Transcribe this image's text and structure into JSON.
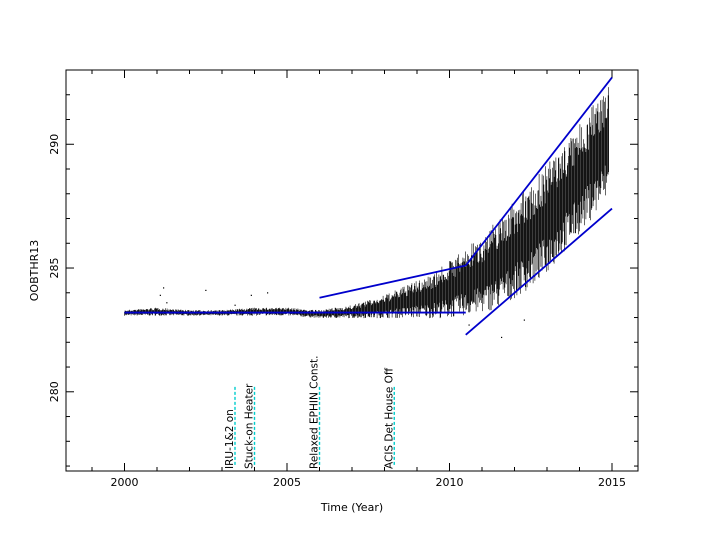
{
  "chart_data": {
    "type": "scatter",
    "title": "",
    "xlabel": "Time (Year)",
    "ylabel": "OOBTHR13",
    "xlim": [
      1998.2,
      2015.8
    ],
    "ylim": [
      276.8,
      293.0
    ],
    "x_ticks": [
      "2000",
      "2005",
      "2010",
      "2015"
    ],
    "y_ticks": [
      "280",
      "285",
      "290"
    ],
    "grid": false,
    "colors": {
      "data": "#000000",
      "fit": "#0000cc",
      "event": "#00cccc",
      "axes": "#000000"
    },
    "series": [
      {
        "kind": "data-envelope",
        "x": [
          2000.0,
          2001.0,
          2002.0,
          2003.0,
          2004.0,
          2005.0,
          2006.0,
          2006.5,
          2007.0,
          2007.5,
          2008.0,
          2008.5,
          2009.0,
          2009.5,
          2010.0,
          2010.5,
          2011.0,
          2011.5,
          2012.0,
          2012.5,
          2013.0,
          2013.5,
          2014.0,
          2014.5,
          2014.9
        ],
        "low": [
          283.1,
          283.1,
          283.1,
          283.1,
          283.1,
          283.1,
          283.0,
          283.0,
          283.0,
          283.0,
          283.0,
          283.0,
          283.0,
          283.0,
          283.0,
          283.1,
          283.2,
          283.4,
          283.8,
          284.2,
          284.8,
          285.6,
          286.4,
          287.2,
          287.8
        ],
        "high": [
          283.3,
          283.4,
          283.3,
          283.3,
          283.4,
          283.4,
          283.3,
          283.4,
          283.5,
          283.7,
          283.9,
          284.2,
          284.5,
          284.8,
          285.3,
          285.8,
          286.3,
          287.0,
          287.7,
          288.4,
          289.2,
          290.0,
          290.8,
          291.8,
          292.6
        ]
      }
    ],
    "fit_lines": [
      {
        "x": [
          2000.0,
          2010.5
        ],
        "y": [
          283.2,
          283.2
        ]
      },
      {
        "x": [
          2006.0,
          2010.5
        ],
        "y": [
          283.8,
          285.1
        ]
      },
      {
        "x": [
          2010.5,
          2015.0
        ],
        "y": [
          285.1,
          292.7
        ]
      },
      {
        "x": [
          2010.5,
          2015.0
        ],
        "y": [
          282.3,
          287.4
        ]
      }
    ],
    "sparse_points": [
      {
        "x": 2001.2,
        "y": 284.2
      },
      {
        "x": 2001.1,
        "y": 283.9
      },
      {
        "x": 2001.3,
        "y": 283.6
      },
      {
        "x": 2002.5,
        "y": 284.1
      },
      {
        "x": 2003.4,
        "y": 283.5
      },
      {
        "x": 2003.9,
        "y": 283.9
      },
      {
        "x": 2004.4,
        "y": 284.0
      },
      {
        "x": 2010.6,
        "y": 282.7
      },
      {
        "x": 2011.6,
        "y": 282.2
      },
      {
        "x": 2012.3,
        "y": 282.9
      }
    ],
    "events": [
      {
        "x": 2003.4,
        "label": "IRU-1&2 on"
      },
      {
        "x": 2004.0,
        "label": "Stuck-on Heater"
      },
      {
        "x": 2006.0,
        "label": "Relaxed EPHIN Const."
      },
      {
        "x": 2008.3,
        "label": "ACIS Det House Off"
      }
    ],
    "event_marker_range": [
      277.0,
      280.2
    ]
  }
}
